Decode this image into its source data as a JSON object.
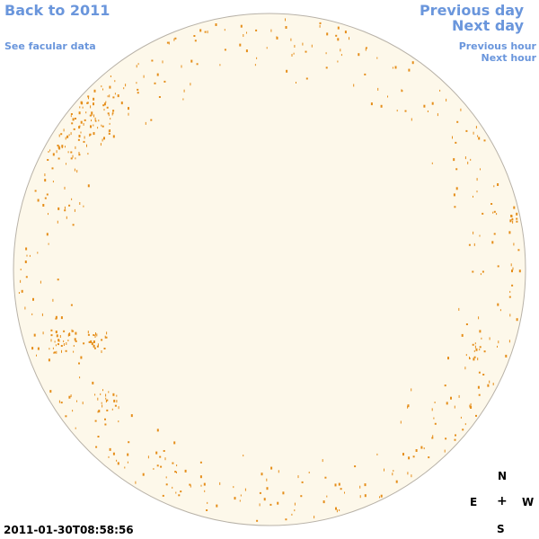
{
  "nav": {
    "back": "Back to 2011",
    "facular": "See facular data",
    "previous_day": "Previous day",
    "next_day": "Next day",
    "previous_hour": "Previous hour",
    "next_hour": "Next hour"
  },
  "timestamp": "2011-01-30T08:58:56",
  "compass": {
    "north": "N",
    "east": "E",
    "center": "+",
    "west": "W",
    "south": "S"
  },
  "colors": {
    "link": "#6a96dc",
    "disk_fill": "#fdf8ea",
    "disk_stroke": "#b8b2a8",
    "facula": "#e58e1a"
  }
}
